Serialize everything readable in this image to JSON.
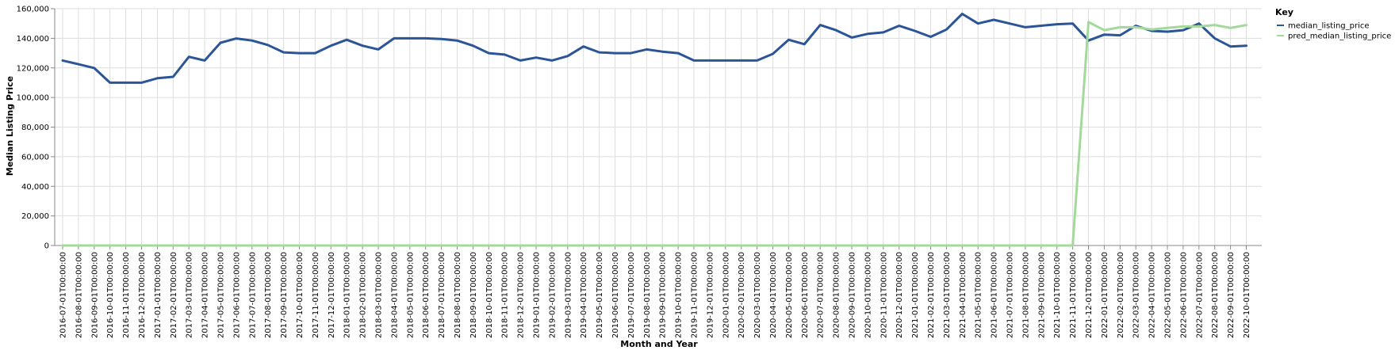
{
  "chart_data": {
    "type": "line",
    "xlabel": "Month and Year",
    "ylabel": "Median Listing Price",
    "ylim": [
      0,
      160000
    ],
    "yticks": [
      0,
      20000,
      40000,
      60000,
      80000,
      100000,
      120000,
      140000,
      160000
    ],
    "grid": true,
    "legend": {
      "title": "Key",
      "placement": "top-right"
    },
    "x": [
      "2016-07-01T00:00:00",
      "2016-08-01T00:00:00",
      "2016-09-01T00:00:00",
      "2016-10-01T00:00:00",
      "2016-11-01T00:00:00",
      "2016-12-01T00:00:00",
      "2017-01-01T00:00:00",
      "2017-02-01T00:00:00",
      "2017-03-01T00:00:00",
      "2017-04-01T00:00:00",
      "2017-05-01T00:00:00",
      "2017-06-01T00:00:00",
      "2017-07-01T00:00:00",
      "2017-08-01T00:00:00",
      "2017-09-01T00:00:00",
      "2017-10-01T00:00:00",
      "2017-11-01T00:00:00",
      "2017-12-01T00:00:00",
      "2018-01-01T00:00:00",
      "2018-02-01T00:00:00",
      "2018-03-01T00:00:00",
      "2018-04-01T00:00:00",
      "2018-05-01T00:00:00",
      "2018-06-01T00:00:00",
      "2018-07-01T00:00:00",
      "2018-08-01T00:00:00",
      "2018-09-01T00:00:00",
      "2018-10-01T00:00:00",
      "2018-11-01T00:00:00",
      "2018-12-01T00:00:00",
      "2019-01-01T00:00:00",
      "2019-02-01T00:00:00",
      "2019-03-01T00:00:00",
      "2019-04-01T00:00:00",
      "2019-05-01T00:00:00",
      "2019-06-01T00:00:00",
      "2019-07-01T00:00:00",
      "2019-08-01T00:00:00",
      "2019-09-01T00:00:00",
      "2019-10-01T00:00:00",
      "2019-11-01T00:00:00",
      "2019-12-01T00:00:00",
      "2020-01-01T00:00:00",
      "2020-02-01T00:00:00",
      "2020-03-01T00:00:00",
      "2020-04-01T00:00:00",
      "2020-05-01T00:00:00",
      "2020-06-01T00:00:00",
      "2020-07-01T00:00:00",
      "2020-08-01T00:00:00",
      "2020-09-01T00:00:00",
      "2020-10-01T00:00:00",
      "2020-11-01T00:00:00",
      "2020-12-01T00:00:00",
      "2021-01-01T00:00:00",
      "2021-02-01T00:00:00",
      "2021-03-01T00:00:00",
      "2021-04-01T00:00:00",
      "2021-05-01T00:00:00",
      "2021-06-01T00:00:00",
      "2021-07-01T00:00:00",
      "2021-08-01T00:00:00",
      "2021-09-01T00:00:00",
      "2021-10-01T00:00:00",
      "2021-11-01T00:00:00",
      "2021-12-01T00:00:00",
      "2022-01-01T00:00:00",
      "2022-02-01T00:00:00",
      "2022-03-01T00:00:00",
      "2022-04-01T00:00:00",
      "2022-05-01T00:00:00",
      "2022-06-01T00:00:00",
      "2022-07-01T00:00:00",
      "2022-08-01T00:00:00",
      "2022-09-01T00:00:00",
      "2022-10-01T00:00:00"
    ],
    "series": [
      {
        "name": "median_listing_price",
        "color": "#2b5597",
        "values": [
          125000,
          122500,
          119900,
          110000,
          110000,
          110000,
          113000,
          114000,
          127500,
          125000,
          137000,
          139900,
          138500,
          135500,
          130500,
          130000,
          130000,
          135000,
          139000,
          135000,
          132500,
          140000,
          140000,
          140000,
          139500,
          138500,
          135000,
          130000,
          129000,
          125000,
          127000,
          125000,
          128000,
          134500,
          130500,
          130000,
          130000,
          132500,
          131000,
          130000,
          125000,
          125000,
          125000,
          125000,
          125000,
          129500,
          139000,
          136000,
          149000,
          145500,
          140500,
          143000,
          144000,
          148500,
          145000,
          141000,
          145900,
          156500,
          150000,
          152500,
          150000,
          147500,
          148500,
          149500,
          150000,
          138500,
          142500,
          142000,
          148500,
          145000,
          144500,
          145500,
          150000,
          140000,
          134500,
          135000
        ]
      },
      {
        "name": "pred_median_listing_price",
        "color": "#a3d99a",
        "values": [
          0,
          0,
          0,
          0,
          0,
          0,
          0,
          0,
          0,
          0,
          0,
          0,
          0,
          0,
          0,
          0,
          0,
          0,
          0,
          0,
          0,
          0,
          0,
          0,
          0,
          0,
          0,
          0,
          0,
          0,
          0,
          0,
          0,
          0,
          0,
          0,
          0,
          0,
          0,
          0,
          0,
          0,
          0,
          0,
          0,
          0,
          0,
          0,
          0,
          0,
          0,
          0,
          0,
          0,
          0,
          0,
          0,
          0,
          0,
          0,
          0,
          0,
          0,
          0,
          0,
          151000,
          145500,
          147500,
          147500,
          146000,
          147000,
          148000,
          148000,
          149000,
          147000,
          149000
        ]
      }
    ]
  }
}
